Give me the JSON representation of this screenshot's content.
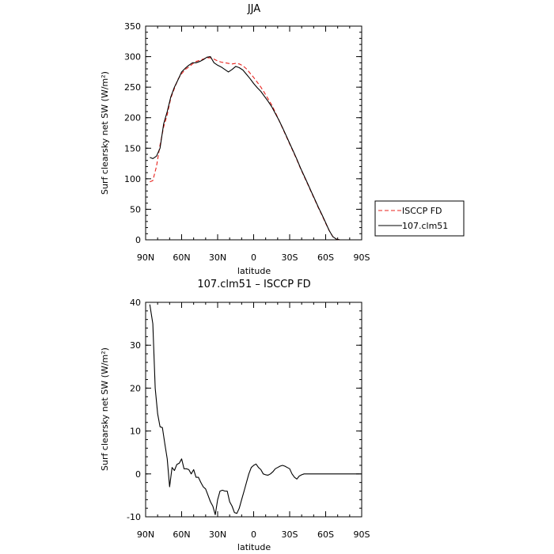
{
  "chart_data": [
    {
      "type": "line",
      "title": "JJA",
      "xlabel": "latitude",
      "ylabel": "Surf clearsky net SW (W/m²)",
      "xlim": [
        90,
        -90
      ],
      "ylim": [
        0,
        350
      ],
      "xticks": [
        {
          "value": 90,
          "label": "90N"
        },
        {
          "value": 60,
          "label": "60N"
        },
        {
          "value": 30,
          "label": "30N"
        },
        {
          "value": 0,
          "label": "0"
        },
        {
          "value": -30,
          "label": "30S"
        },
        {
          "value": -60,
          "label": "60S"
        },
        {
          "value": -90,
          "label": "90S"
        }
      ],
      "yticks": [
        0,
        50,
        100,
        150,
        200,
        250,
        300,
        350
      ],
      "legend_position": "right",
      "series": [
        {
          "name": "ISCCP FD",
          "color": "#e8231e",
          "dash": "dashed",
          "x": [
            86.5,
            84,
            81,
            78,
            75,
            72,
            69,
            66,
            63,
            60,
            57,
            54,
            51,
            48,
            45,
            42,
            39,
            36,
            33,
            30,
            27,
            24,
            21,
            18,
            15,
            12,
            9,
            6,
            3,
            0,
            -3,
            -6,
            -9,
            -12,
            -15,
            -18,
            -21,
            -24,
            -27,
            -30,
            -33,
            -36,
            -39,
            -42,
            -45,
            -48,
            -51,
            -54,
            -57,
            -60,
            -63,
            -66,
            -69,
            -72,
            -75,
            -78
          ],
          "y": [
            95,
            97,
            120,
            155,
            185,
            205,
            232,
            248,
            263,
            272,
            279,
            283,
            288,
            292,
            294,
            296,
            298,
            298,
            296,
            293,
            291,
            290,
            289,
            288,
            289,
            288,
            285,
            280,
            273,
            266,
            258,
            250,
            241,
            231,
            221,
            209,
            196,
            183,
            170,
            157,
            144,
            131,
            117,
            104,
            91,
            78,
            65,
            52,
            40,
            27,
            15,
            5,
            1,
            0,
            0,
            0
          ]
        },
        {
          "name": "107.clm51",
          "color": "#000000",
          "dash": "solid",
          "x": [
            86.5,
            84,
            81,
            78,
            75,
            72,
            69,
            66,
            63,
            60,
            57,
            54,
            51,
            48,
            45,
            42,
            39,
            36,
            33,
            30,
            27,
            24,
            21,
            18,
            15,
            12,
            9,
            6,
            3,
            0,
            -3,
            -6,
            -9,
            -12,
            -15,
            -18,
            -21,
            -24,
            -27,
            -30,
            -33,
            -36,
            -39,
            -42,
            -45,
            -48,
            -51,
            -54,
            -57,
            -60,
            -63,
            -66,
            -69,
            -72,
            -75,
            -78
          ],
          "y": [
            135,
            133,
            137,
            150,
            190,
            210,
            234,
            250,
            262,
            275,
            281,
            286,
            290,
            290,
            292,
            295,
            299,
            300,
            290,
            286,
            283,
            279,
            275,
            279,
            284,
            282,
            278,
            271,
            264,
            256,
            249,
            243,
            235,
            227,
            218,
            207,
            196,
            184,
            171,
            158,
            145,
            132,
            118,
            105,
            92,
            79,
            66,
            53,
            41,
            28,
            15,
            5,
            1,
            0,
            0,
            0
          ]
        }
      ]
    },
    {
      "type": "line",
      "title": "107.clm51 – ISCCP FD",
      "xlabel": "latitude",
      "ylabel": "Surf clearsky net SW (W/m²)",
      "xlim": [
        90,
        -90
      ],
      "ylim": [
        -10,
        40
      ],
      "xticks": [
        {
          "value": 90,
          "label": "90N"
        },
        {
          "value": 60,
          "label": "60N"
        },
        {
          "value": 30,
          "label": "30N"
        },
        {
          "value": 0,
          "label": "0"
        },
        {
          "value": -30,
          "label": "30S"
        },
        {
          "value": -60,
          "label": "60S"
        },
        {
          "value": -90,
          "label": "90S"
        }
      ],
      "yticks": [
        -10,
        0,
        10,
        20,
        30,
        40
      ],
      "series": [
        {
          "color": "#000000",
          "dash": "solid",
          "x": [
            86.5,
            84,
            82,
            80,
            78,
            76,
            74,
            72,
            70,
            68,
            66,
            64,
            62,
            60,
            58,
            56,
            54,
            52,
            50,
            48,
            46,
            44,
            42,
            40,
            38,
            36,
            34,
            32,
            30,
            28,
            26,
            24,
            22,
            20,
            18,
            16,
            14,
            12,
            10,
            8,
            6,
            4,
            2,
            0,
            -2,
            -4,
            -6,
            -8,
            -10,
            -12,
            -14,
            -16,
            -18,
            -20,
            -22,
            -24,
            -26,
            -28,
            -30,
            -32,
            -34,
            -36,
            -38,
            -40,
            -42,
            -44,
            -46,
            -48,
            -50,
            -52,
            -54,
            -56,
            -58,
            -60,
            -62,
            -64,
            -66,
            -68,
            -70,
            -72,
            -74,
            -76,
            -78,
            -80,
            -82,
            -84,
            -86,
            -88
          ],
          "y": [
            39.5,
            35,
            20,
            14,
            11,
            10.8,
            7,
            3.5,
            -3,
            1.5,
            0.8,
            2.2,
            2.5,
            3.5,
            1.2,
            1.2,
            1,
            0,
            1,
            -0.8,
            -0.8,
            -2,
            -3,
            -3.5,
            -5,
            -6.5,
            -7.5,
            -9.5,
            -6,
            -4,
            -3.8,
            -4,
            -4,
            -6.5,
            -7.5,
            -9,
            -9.2,
            -8,
            -6,
            -4,
            -2,
            0,
            1.5,
            2,
            2.3,
            1.5,
            1,
            0,
            -0.2,
            -0.3,
            0,
            0.5,
            1.2,
            1.5,
            1.8,
            2,
            1.8,
            1.5,
            1.2,
            0,
            -0.8,
            -1.2,
            -0.5,
            -0.2,
            0,
            0,
            0,
            0,
            0,
            0,
            0,
            0,
            0,
            0,
            0,
            0,
            0,
            0,
            0,
            0,
            0,
            0,
            0,
            0,
            0,
            0,
            0,
            0
          ]
        }
      ]
    }
  ]
}
